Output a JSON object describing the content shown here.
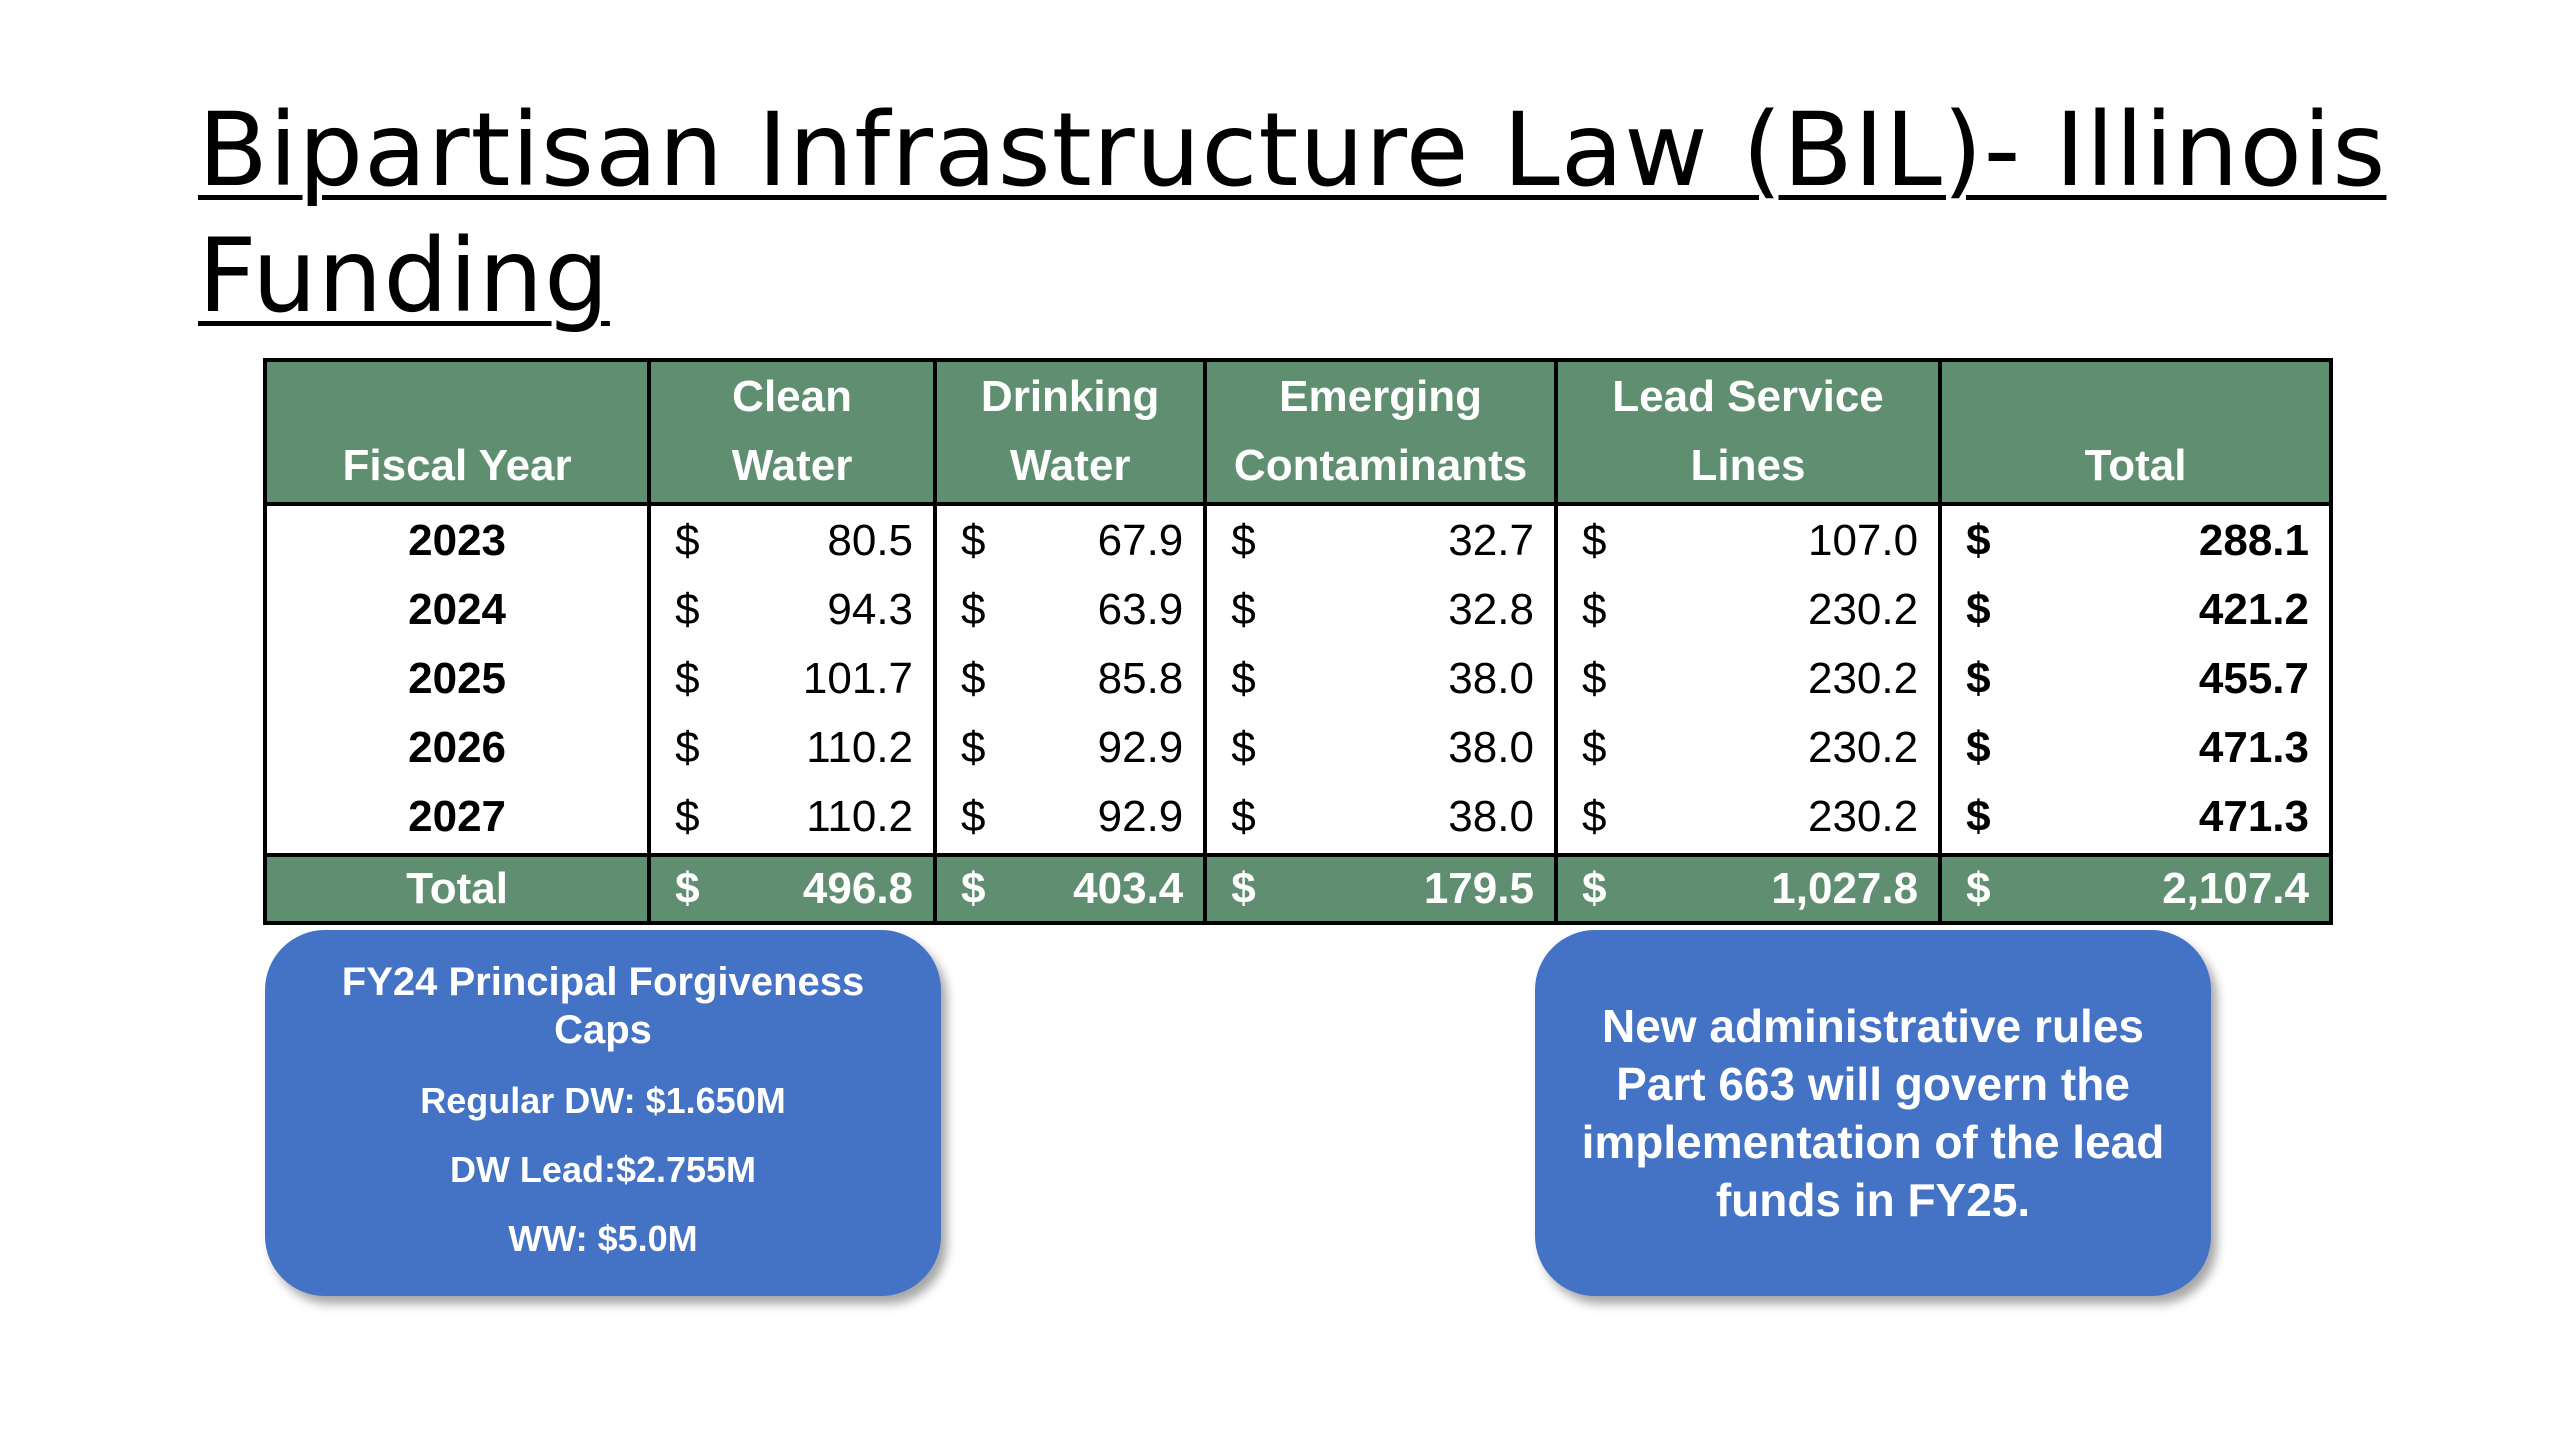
{
  "slide": {
    "title_line1": "Bipartisan Infrastructure Law (BIL)- Illinois",
    "title_line2": "Funding"
  },
  "table": {
    "headers": [
      {
        "line1": "",
        "line2": "Fiscal Year"
      },
      {
        "line1": "Clean",
        "line2": "Water"
      },
      {
        "line1": "Drinking",
        "line2": "Water"
      },
      {
        "line1": "Emerging",
        "line2": "Contaminants"
      },
      {
        "line1": "Lead Service",
        "line2": "Lines"
      },
      {
        "line1": "",
        "line2": "Total"
      }
    ],
    "currency_symbol": "$",
    "rows": [
      {
        "year": "2023",
        "values": [
          "80.5",
          "67.9",
          "32.7",
          "107.0",
          "288.1"
        ]
      },
      {
        "year": "2024",
        "values": [
          "94.3",
          "63.9",
          "32.8",
          "230.2",
          "421.2"
        ]
      },
      {
        "year": "2025",
        "values": [
          "101.7",
          "85.8",
          "38.0",
          "230.2",
          "455.7"
        ]
      },
      {
        "year": "2026",
        "values": [
          "110.2",
          "92.9",
          "38.0",
          "230.2",
          "471.3"
        ]
      },
      {
        "year": "2027",
        "values": [
          "110.2",
          "92.9",
          "38.0",
          "230.2",
          "471.3"
        ]
      }
    ],
    "total_row": {
      "label": "Total",
      "values": [
        "496.8",
        "403.4",
        "179.5",
        "1,027.8",
        "2,107.4"
      ]
    }
  },
  "callout_left": {
    "title": "FY24 Principal Forgiveness Caps",
    "lines": [
      "Regular DW: $1.650M",
      "DW Lead:$2.755M",
      "WW: $5.0M"
    ]
  },
  "callout_right": {
    "text": "New administrative rules Part 663 will govern the implementation of the lead funds in FY25."
  },
  "colors": {
    "header_green": "#5f8f70",
    "callout_blue": "#4472c4"
  }
}
